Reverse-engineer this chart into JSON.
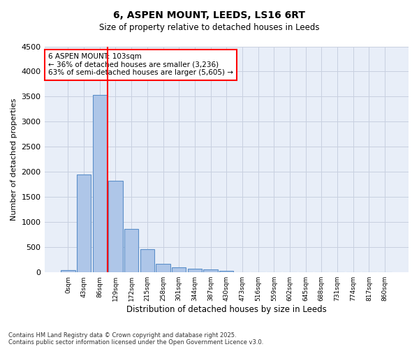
{
  "title": "6, ASPEN MOUNT, LEEDS, LS16 6RT",
  "subtitle": "Size of property relative to detached houses in Leeds",
  "xlabel": "Distribution of detached houses by size in Leeds",
  "ylabel": "Number of detached properties",
  "bar_labels": [
    "0sqm",
    "43sqm",
    "86sqm",
    "129sqm",
    "172sqm",
    "215sqm",
    "258sqm",
    "301sqm",
    "344sqm",
    "387sqm",
    "430sqm",
    "473sqm",
    "516sqm",
    "559sqm",
    "602sqm",
    "645sqm",
    "688sqm",
    "731sqm",
    "774sqm",
    "817sqm",
    "860sqm"
  ],
  "bar_values": [
    50,
    1950,
    3530,
    1820,
    860,
    460,
    175,
    105,
    75,
    60,
    35,
    5,
    0,
    0,
    0,
    0,
    0,
    0,
    0,
    0,
    0
  ],
  "bar_color": "#aec6e8",
  "bar_edgecolor": "#5b8fc9",
  "ylim": [
    0,
    4500
  ],
  "yticks": [
    0,
    500,
    1000,
    1500,
    2000,
    2500,
    3000,
    3500,
    4000,
    4500
  ],
  "grid_color": "#c8d0e0",
  "background_color": "#e8eef8",
  "red_line_x": 2.5,
  "annotation_text": "6 ASPEN MOUNT: 103sqm\n← 36% of detached houses are smaller (3,236)\n63% of semi-detached houses are larger (5,605) →",
  "annotation_box_color": "#ff0000",
  "footer_line1": "Contains HM Land Registry data © Crown copyright and database right 2025.",
  "footer_line2": "Contains public sector information licensed under the Open Government Licence v3.0."
}
